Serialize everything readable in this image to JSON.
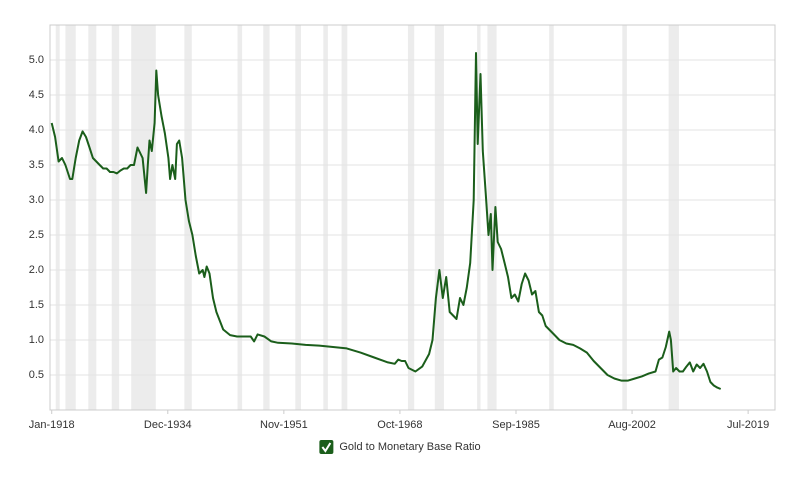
{
  "chart_data": {
    "type": "line",
    "series": [
      {
        "name": "Gold to Monetary Base Ratio",
        "color": "#1b5e1b",
        "x": [
          "1918-01",
          "1918-07",
          "1919-01",
          "1919-07",
          "1920-01",
          "1920-09",
          "1921-01",
          "1921-07",
          "1922-01",
          "1922-07",
          "1923-01",
          "1923-07",
          "1924-01",
          "1924-07",
          "1925-01",
          "1925-07",
          "1926-01",
          "1926-07",
          "1927-01",
          "1927-07",
          "1928-01",
          "1928-07",
          "1929-01",
          "1929-07",
          "1930-01",
          "1930-07",
          "1931-04",
          "1931-10",
          "1932-01",
          "1932-04",
          "1932-08",
          "1933-01",
          "1933-04",
          "1933-07",
          "1934-01",
          "1934-07",
          "1935-01",
          "1935-04",
          "1935-08",
          "1936-01",
          "1936-04",
          "1936-08",
          "1937-01",
          "1937-07",
          "1938-01",
          "1938-07",
          "1939-01",
          "1939-07",
          "1940-01",
          "1940-04",
          "1940-08",
          "1941-01",
          "1941-07",
          "1942-01",
          "1943-01",
          "1944-01",
          "1945-01",
          "1946-01",
          "1947-01",
          "1947-07",
          "1948-01",
          "1949-01",
          "1950-01",
          "1951-01",
          "1953-01",
          "1955-01",
          "1957-01",
          "1959-01",
          "1961-01",
          "1963-01",
          "1965-01",
          "1967-01",
          "1968-01",
          "1968-07",
          "1969-01",
          "1969-07",
          "1970-01",
          "1971-01",
          "1972-01",
          "1973-01",
          "1973-07",
          "1974-01",
          "1974-07",
          "1975-01",
          "1975-07",
          "1976-01",
          "1977-01",
          "1977-07",
          "1978-01",
          "1978-07",
          "1979-01",
          "1979-07",
          "1979-11",
          "1980-02",
          "1980-07",
          "1980-11",
          "1981-04",
          "1981-09",
          "1982-01",
          "1982-04",
          "1982-09",
          "1983-01",
          "1983-07",
          "1984-01",
          "1984-07",
          "1985-01",
          "1985-07",
          "1986-01",
          "1986-07",
          "1987-01",
          "1987-07",
          "1988-01",
          "1988-07",
          "1989-01",
          "1989-07",
          "1990-01",
          "1991-01",
          "1992-01",
          "1993-01",
          "1994-01",
          "1995-01",
          "1996-01",
          "1997-01",
          "1998-01",
          "1999-01",
          "2000-01",
          "2001-01",
          "2002-01",
          "2003-01",
          "2004-01",
          "2005-01",
          "2006-01",
          "2006-07",
          "2007-01",
          "2007-07",
          "2008-01",
          "2008-04",
          "2008-08",
          "2009-01",
          "2009-07",
          "2010-01",
          "2010-07",
          "2011-01",
          "2011-07",
          "2012-01",
          "2012-07",
          "2013-01",
          "2013-07",
          "2014-01",
          "2014-07",
          "2015-01",
          "2015-07"
        ],
        "values": [
          4.1,
          3.9,
          3.55,
          3.6,
          3.5,
          3.3,
          3.3,
          3.6,
          3.85,
          3.98,
          3.9,
          3.75,
          3.6,
          3.55,
          3.5,
          3.45,
          3.45,
          3.4,
          3.4,
          3.38,
          3.42,
          3.45,
          3.45,
          3.5,
          3.5,
          3.75,
          3.6,
          3.1,
          3.5,
          3.85,
          3.7,
          4.1,
          4.85,
          4.5,
          4.2,
          3.95,
          3.6,
          3.3,
          3.5,
          3.3,
          3.8,
          3.85,
          3.6,
          3.0,
          2.7,
          2.5,
          2.2,
          1.95,
          2.0,
          1.9,
          2.05,
          1.95,
          1.6,
          1.4,
          1.15,
          1.07,
          1.05,
          1.05,
          1.05,
          0.98,
          1.08,
          1.05,
          0.98,
          0.96,
          0.95,
          0.93,
          0.92,
          0.9,
          0.88,
          0.82,
          0.75,
          0.68,
          0.66,
          0.72,
          0.7,
          0.7,
          0.6,
          0.55,
          0.62,
          0.8,
          1.0,
          1.6,
          2.0,
          1.6,
          1.9,
          1.4,
          1.3,
          1.6,
          1.5,
          1.75,
          2.1,
          3.0,
          5.1,
          3.8,
          4.8,
          3.7,
          3.1,
          2.5,
          2.8,
          2.0,
          2.9,
          2.4,
          2.3,
          2.1,
          1.9,
          1.6,
          1.65,
          1.55,
          1.8,
          1.95,
          1.85,
          1.65,
          1.7,
          1.4,
          1.35,
          1.2,
          1.1,
          1.0,
          0.95,
          0.93,
          0.88,
          0.82,
          0.7,
          0.6,
          0.5,
          0.45,
          0.42,
          0.42,
          0.45,
          0.48,
          0.52,
          0.55,
          0.72,
          0.75,
          0.9,
          1.12,
          1.0,
          0.55,
          0.6,
          0.55,
          0.55,
          0.62,
          0.68,
          0.55,
          0.65,
          0.6,
          0.66,
          0.55,
          0.4,
          0.35,
          0.32,
          0.3
        ]
      }
    ],
    "xlim": [
      "1917-10",
      "2023-06"
    ],
    "xticks": [
      {
        "value": "1918-01",
        "label": "Jan-1918"
      },
      {
        "value": "1934-12",
        "label": "Dec-1934"
      },
      {
        "value": "1951-11",
        "label": "Nov-1951"
      },
      {
        "value": "1968-10",
        "label": "Oct-1968"
      },
      {
        "value": "1985-09",
        "label": "Sep-1985"
      },
      {
        "value": "2002-08",
        "label": "Aug-2002"
      },
      {
        "value": "2019-07",
        "label": "Jul-2019"
      }
    ],
    "ylim": [
      0,
      5.5
    ],
    "yticks": [
      0.5,
      {
        "value": 1,
        "label": "1.0"
      },
      1.5,
      {
        "value": 2,
        "label": "2.0"
      },
      2.5,
      {
        "value": 3,
        "label": "3.0"
      },
      3.5,
      {
        "value": 4,
        "label": "4.0"
      },
      4.5,
      {
        "value": 5,
        "label": "5.0"
      }
    ],
    "grid": true,
    "recession_bands": [
      [
        "1918-08",
        "1919-03"
      ],
      [
        "1920-01",
        "1921-07"
      ],
      [
        "1923-05",
        "1924-07"
      ],
      [
        "1926-10",
        "1927-11"
      ],
      [
        "1929-08",
        "1933-03"
      ],
      [
        "1937-05",
        "1938-06"
      ],
      [
        "1945-02",
        "1945-10"
      ],
      [
        "1948-11",
        "1949-10"
      ],
      [
        "1953-07",
        "1954-05"
      ],
      [
        "1957-08",
        "1958-04"
      ],
      [
        "1960-04",
        "1961-02"
      ],
      [
        "1969-12",
        "1970-11"
      ],
      [
        "1973-11",
        "1975-03"
      ],
      [
        "1980-01",
        "1980-07"
      ],
      [
        "1981-07",
        "1982-11"
      ],
      [
        "1990-07",
        "1991-03"
      ],
      [
        "2001-03",
        "2001-11"
      ],
      [
        "2007-12",
        "2009-06"
      ]
    ],
    "recession_color": "#ececec",
    "legend": "bottom"
  }
}
